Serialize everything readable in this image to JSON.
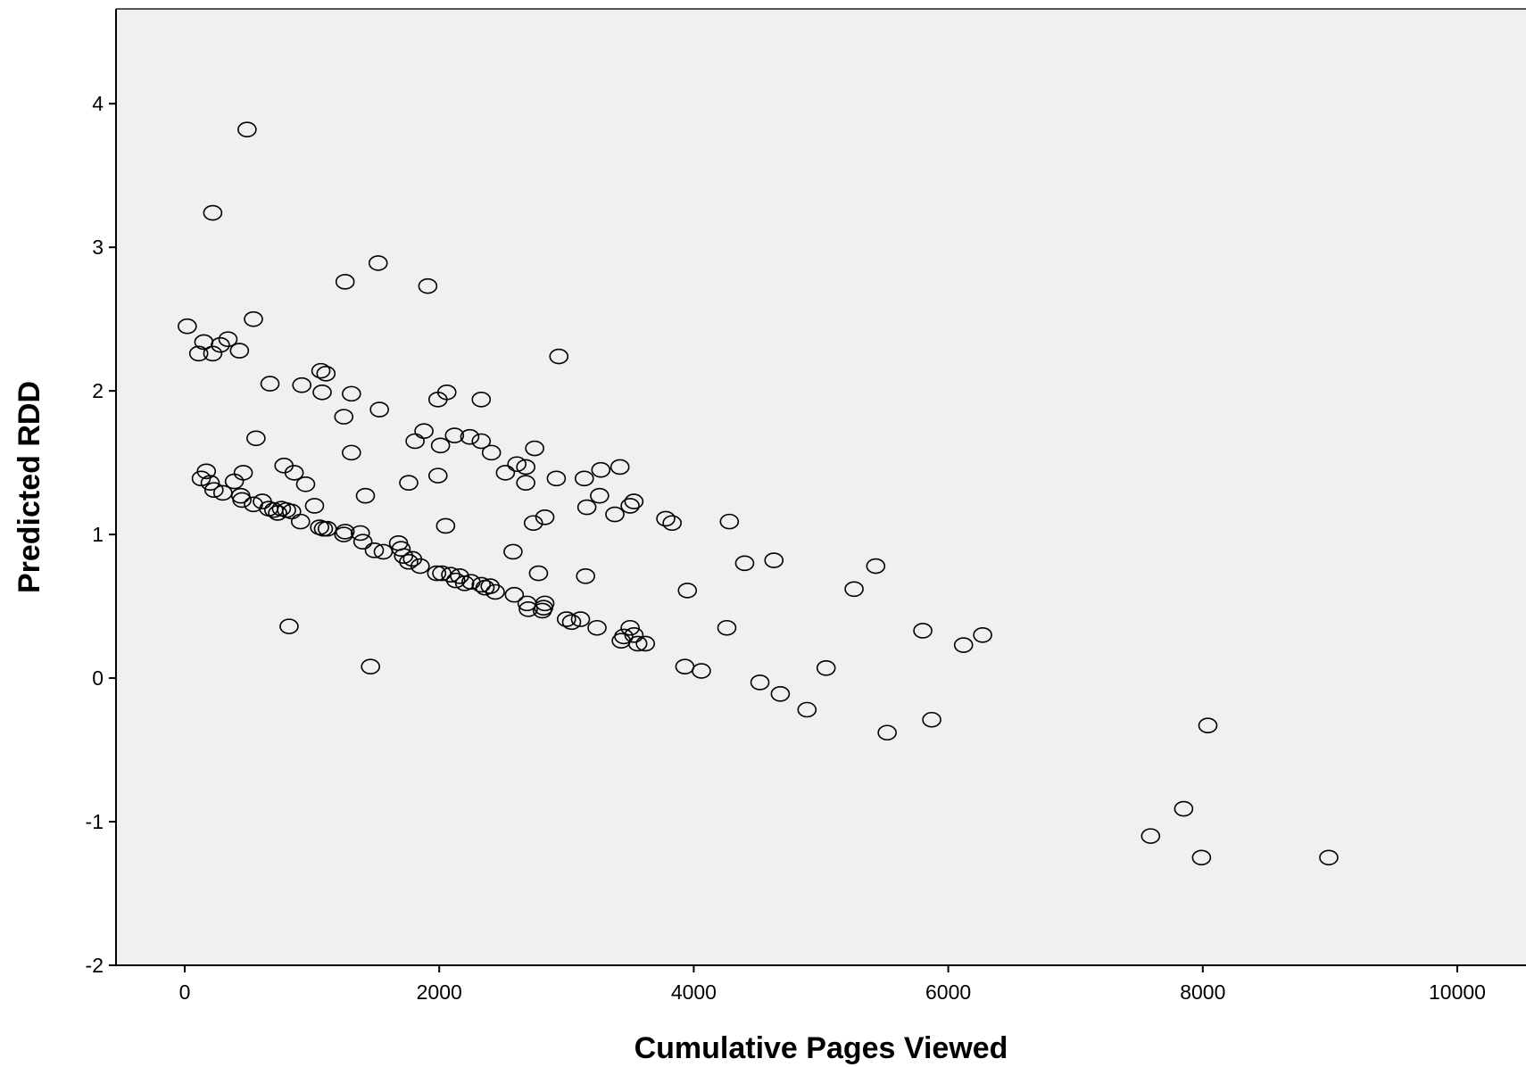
{
  "chart_data": {
    "type": "scatter",
    "title": "",
    "xlabel": "Cumulative Pages Viewed",
    "ylabel": "Predicted RDD",
    "xlim": [
      -540,
      10540
    ],
    "ylim": [
      -2,
      4.66
    ],
    "xticks": [
      0,
      2000,
      4000,
      6000,
      8000,
      10000
    ],
    "yticks": [
      -2,
      -1,
      0,
      1,
      2,
      3,
      4
    ],
    "grid": false,
    "legend": "none",
    "marker": "open-circle",
    "colors": {
      "background": "#f0f0f0",
      "marker": "#000000",
      "axis": "#000000"
    },
    "series": [
      {
        "points": [
          [
            490,
            3.82
          ],
          [
            220,
            3.24
          ],
          [
            1520,
            2.89
          ],
          [
            1260,
            2.76
          ],
          [
            1910,
            2.73
          ],
          [
            20,
            2.45
          ],
          [
            540,
            2.5
          ],
          [
            340,
            2.36
          ],
          [
            150,
            2.34
          ],
          [
            110,
            2.26
          ],
          [
            220,
            2.26
          ],
          [
            280,
            2.32
          ],
          [
            430,
            2.28
          ],
          [
            2940,
            2.24
          ],
          [
            1070,
            2.14
          ],
          [
            1110,
            2.12
          ],
          [
            670,
            2.05
          ],
          [
            920,
            2.04
          ],
          [
            1080,
            1.99
          ],
          [
            1310,
            1.98
          ],
          [
            2060,
            1.99
          ],
          [
            1990,
            1.94
          ],
          [
            2330,
            1.94
          ],
          [
            1530,
            1.87
          ],
          [
            1250,
            1.82
          ],
          [
            560,
            1.67
          ],
          [
            1880,
            1.72
          ],
          [
            1810,
            1.65
          ],
          [
            2010,
            1.62
          ],
          [
            2120,
            1.69
          ],
          [
            2240,
            1.68
          ],
          [
            2330,
            1.65
          ],
          [
            2410,
            1.57
          ],
          [
            2750,
            1.6
          ],
          [
            1310,
            1.57
          ],
          [
            2610,
            1.49
          ],
          [
            2680,
            1.47
          ],
          [
            2520,
            1.43
          ],
          [
            3420,
            1.47
          ],
          [
            3270,
            1.45
          ],
          [
            780,
            1.48
          ],
          [
            860,
            1.43
          ],
          [
            950,
            1.35
          ],
          [
            170,
            1.44
          ],
          [
            130,
            1.39
          ],
          [
            200,
            1.36
          ],
          [
            230,
            1.31
          ],
          [
            300,
            1.29
          ],
          [
            390,
            1.37
          ],
          [
            460,
            1.43
          ],
          [
            1990,
            1.41
          ],
          [
            1760,
            1.36
          ],
          [
            2920,
            1.39
          ],
          [
            3140,
            1.39
          ],
          [
            2680,
            1.36
          ],
          [
            1420,
            1.27
          ],
          [
            3260,
            1.27
          ],
          [
            3530,
            1.23
          ],
          [
            3500,
            1.2
          ],
          [
            3160,
            1.19
          ],
          [
            3380,
            1.14
          ],
          [
            3780,
            1.11
          ],
          [
            3830,
            1.08
          ],
          [
            2830,
            1.12
          ],
          [
            2740,
            1.08
          ],
          [
            4280,
            1.09
          ],
          [
            2050,
            1.06
          ],
          [
            440,
            1.27
          ],
          [
            450,
            1.24
          ],
          [
            540,
            1.21
          ],
          [
            610,
            1.23
          ],
          [
            660,
            1.18
          ],
          [
            700,
            1.17
          ],
          [
            730,
            1.15
          ],
          [
            760,
            1.18
          ],
          [
            800,
            1.17
          ],
          [
            840,
            1.16
          ],
          [
            910,
            1.09
          ],
          [
            1020,
            1.2
          ],
          [
            1060,
            1.05
          ],
          [
            1090,
            1.04
          ],
          [
            1120,
            1.04
          ],
          [
            1250,
            1.0
          ],
          [
            1260,
            1.02
          ],
          [
            1380,
            1.01
          ],
          [
            1400,
            0.95
          ],
          [
            1490,
            0.89
          ],
          [
            1560,
            0.88
          ],
          [
            1680,
            0.94
          ],
          [
            1700,
            0.9
          ],
          [
            1720,
            0.85
          ],
          [
            1760,
            0.81
          ],
          [
            1790,
            0.83
          ],
          [
            1850,
            0.78
          ],
          [
            1980,
            0.73
          ],
          [
            2020,
            0.73
          ],
          [
            2090,
            0.72
          ],
          [
            2130,
            0.68
          ],
          [
            2160,
            0.71
          ],
          [
            2200,
            0.66
          ],
          [
            2250,
            0.67
          ],
          [
            2330,
            0.65
          ],
          [
            2360,
            0.63
          ],
          [
            2400,
            0.64
          ],
          [
            2440,
            0.6
          ],
          [
            2580,
            0.88
          ],
          [
            2590,
            0.58
          ],
          [
            2690,
            0.52
          ],
          [
            2700,
            0.48
          ],
          [
            2780,
            0.73
          ],
          [
            2810,
            0.47
          ],
          [
            2820,
            0.49
          ],
          [
            2830,
            0.52
          ],
          [
            3000,
            0.41
          ],
          [
            3040,
            0.39
          ],
          [
            3110,
            0.41
          ],
          [
            3150,
            0.71
          ],
          [
            3240,
            0.35
          ],
          [
            3430,
            0.26
          ],
          [
            3450,
            0.29
          ],
          [
            3500,
            0.35
          ],
          [
            3530,
            0.3
          ],
          [
            3560,
            0.24
          ],
          [
            3620,
            0.24
          ],
          [
            3950,
            0.61
          ],
          [
            4400,
            0.8
          ],
          [
            4630,
            0.82
          ],
          [
            5260,
            0.62
          ],
          [
            5430,
            0.78
          ],
          [
            4260,
            0.35
          ],
          [
            820,
            0.36
          ],
          [
            1460,
            0.08
          ],
          [
            3930,
            0.08
          ],
          [
            4060,
            0.05
          ],
          [
            4520,
            -0.03
          ],
          [
            4680,
            -0.11
          ],
          [
            4890,
            -0.22
          ],
          [
            5040,
            0.07
          ],
          [
            5520,
            -0.38
          ],
          [
            5800,
            0.33
          ],
          [
            5870,
            -0.29
          ],
          [
            6120,
            0.23
          ],
          [
            6270,
            0.3
          ],
          [
            8040,
            -0.33
          ],
          [
            7850,
            -0.91
          ],
          [
            7590,
            -1.1
          ],
          [
            7990,
            -1.25
          ],
          [
            8990,
            -1.25
          ]
        ]
      }
    ]
  }
}
